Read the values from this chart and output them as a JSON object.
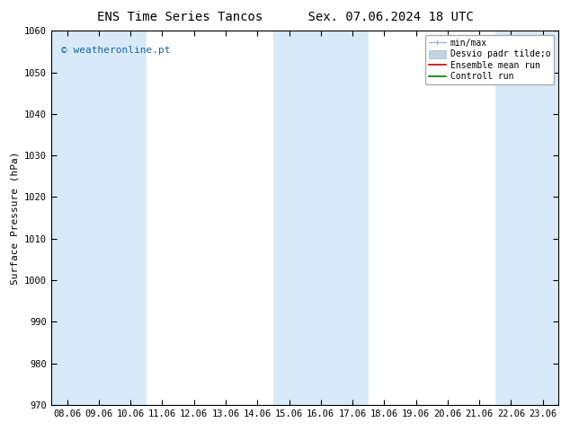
{
  "title_left": "ENS Time Series Tancos",
  "title_right": "Sex. 07.06.2024 18 UTC",
  "ylabel": "Surface Pressure (hPa)",
  "ylim": [
    970,
    1060
  ],
  "yticks": [
    970,
    980,
    990,
    1000,
    1010,
    1020,
    1030,
    1040,
    1050,
    1060
  ],
  "xtick_labels": [
    "08.06",
    "09.06",
    "10.06",
    "11.06",
    "12.06",
    "13.06",
    "14.06",
    "15.06",
    "16.06",
    "17.06",
    "18.06",
    "19.06",
    "20.06",
    "21.06",
    "22.06",
    "23.06"
  ],
  "bg_color": "#ffffff",
  "plot_bg_color": "#ffffff",
  "shaded_bands": [
    0,
    1,
    2,
    7,
    8,
    9,
    14,
    15
  ],
  "band_color": "#d8eaf8",
  "watermark": "© weatheronline.pt",
  "watermark_color": "#1a6699",
  "legend_items": [
    "min/max",
    "Desvio padr tilde;o",
    "Ensemble mean run",
    "Controll run"
  ],
  "ensemble_mean_color": "#cc0000",
  "control_run_color": "#007700",
  "minmax_color": "#a0b8c8",
  "std_color": "#c0d4e4",
  "spine_color": "#000000",
  "title_fontsize": 10,
  "tick_fontsize": 7.5,
  "label_fontsize": 8,
  "legend_fontsize": 7
}
